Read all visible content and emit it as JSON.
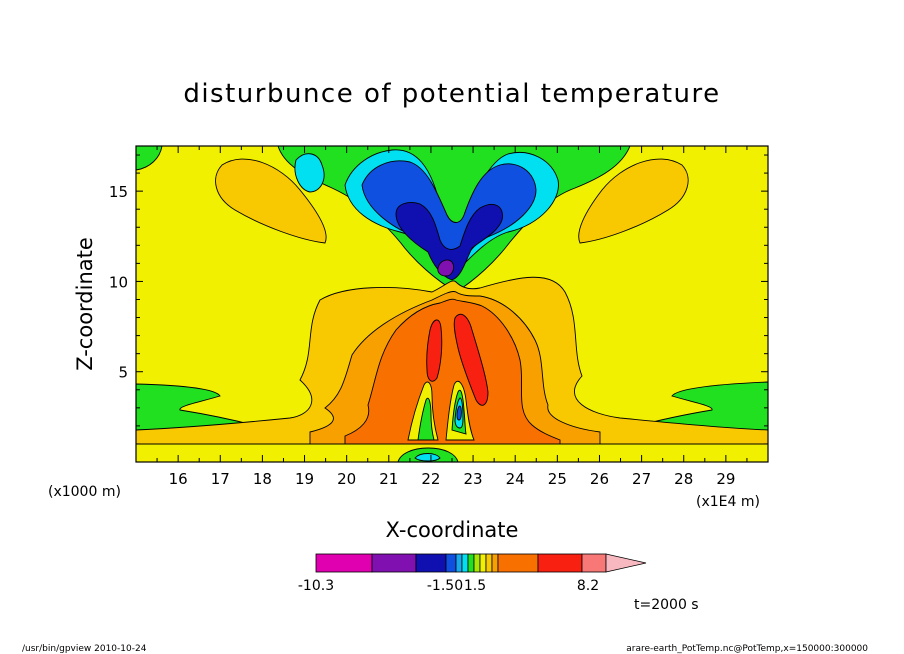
{
  "chart_data": {
    "type": "heatmap",
    "title": "disturbunce of potential temperature",
    "xlabel": "X-coordinate",
    "ylabel": "Z-coordinate",
    "x_unit": "(x1E4 m)",
    "y_unit": "(x1000 m)",
    "xlim": [
      15.0,
      30.0
    ],
    "ylim": [
      0.0,
      17.5
    ],
    "x_ticks": [
      16,
      17,
      18,
      19,
      20,
      21,
      22,
      23,
      24,
      25,
      26,
      27,
      28,
      29
    ],
    "y_ticks": [
      5,
      10,
      15
    ],
    "colorbar": {
      "labels": [
        "-10.3",
        "-1.50",
        "1.5",
        "8.2"
      ],
      "colors": [
        "#e000b0",
        "#8010b0",
        "#1010b0",
        "#1050e0",
        "#18a8f0",
        "#00e0f0",
        "#20e020",
        "#a8e800",
        "#f0f000",
        "#f8c800",
        "#f8a000",
        "#f87000",
        "#f82010",
        "#f87878",
        "#f8b8c0"
      ]
    },
    "time_label": "t=2000 s",
    "footer_left": "/usr/bin/gpview   2010-10-24",
    "footer_right": "arare-earth_PotTemp.nc@PotTemp,x=150000:300000"
  }
}
